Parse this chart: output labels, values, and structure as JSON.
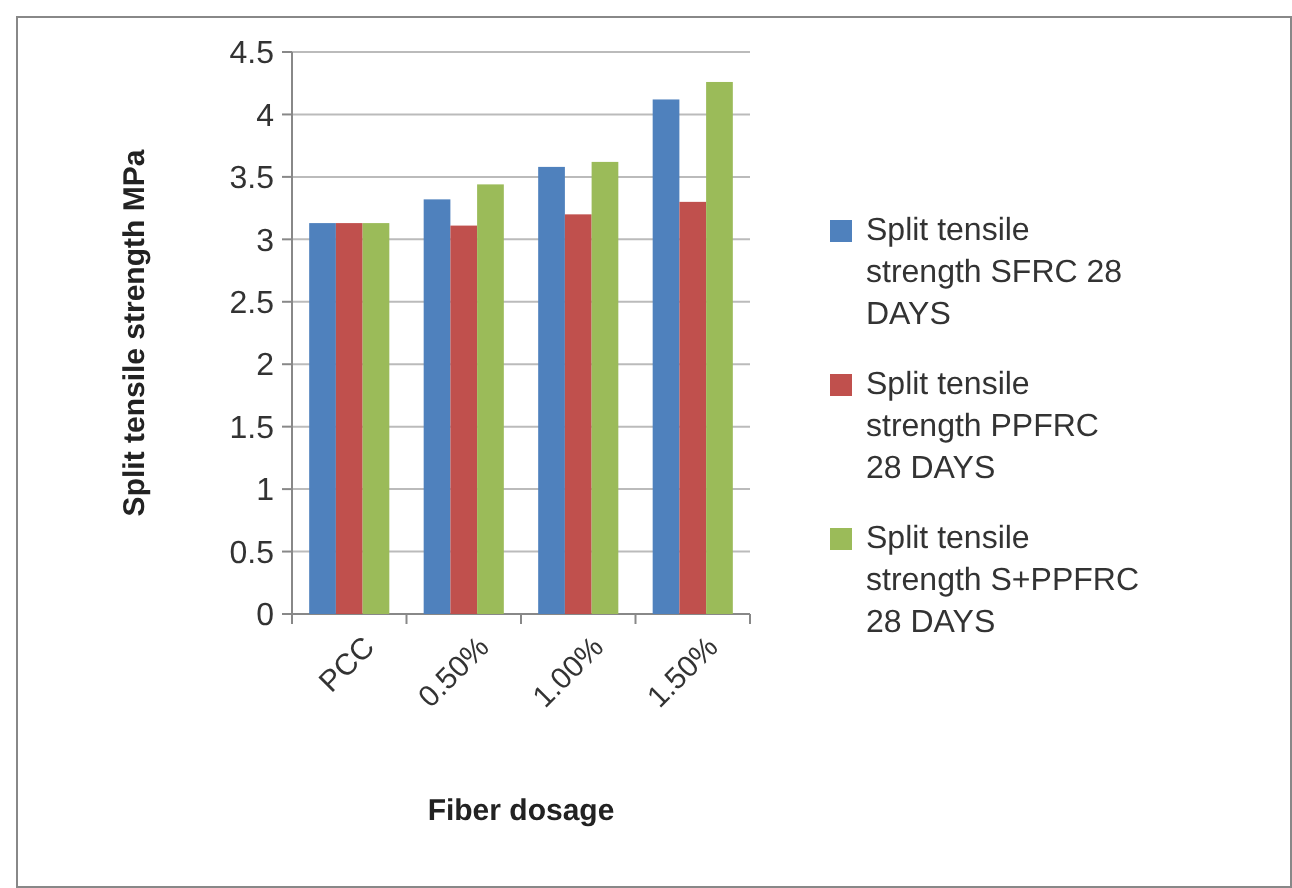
{
  "chart_data": {
    "type": "bar",
    "xlabel": "Fiber dosage",
    "ylabel": "Split tensile strength MPa",
    "categories": [
      "PCC",
      "0.50%",
      "1.00%",
      "1.50%"
    ],
    "series": [
      {
        "name": "Split tensile strength SFRC 28 DAYS",
        "color": "#4f81bd",
        "values": [
          3.13,
          3.32,
          3.58,
          4.12
        ]
      },
      {
        "name": "Split tensile strength PPFRC 28 DAYS",
        "color": "#c0504d",
        "values": [
          3.13,
          3.11,
          3.2,
          3.3
        ]
      },
      {
        "name": "Split tensile strength S+PPFRC 28 DAYS",
        "color": "#9bbb59",
        "values": [
          3.13,
          3.44,
          3.62,
          4.26
        ]
      }
    ],
    "ylim": [
      0,
      4.5
    ],
    "yticks": [
      0,
      0.5,
      1,
      1.5,
      2,
      2.5,
      3,
      3.5,
      4,
      4.5
    ],
    "grid": "y",
    "legend": "right"
  }
}
